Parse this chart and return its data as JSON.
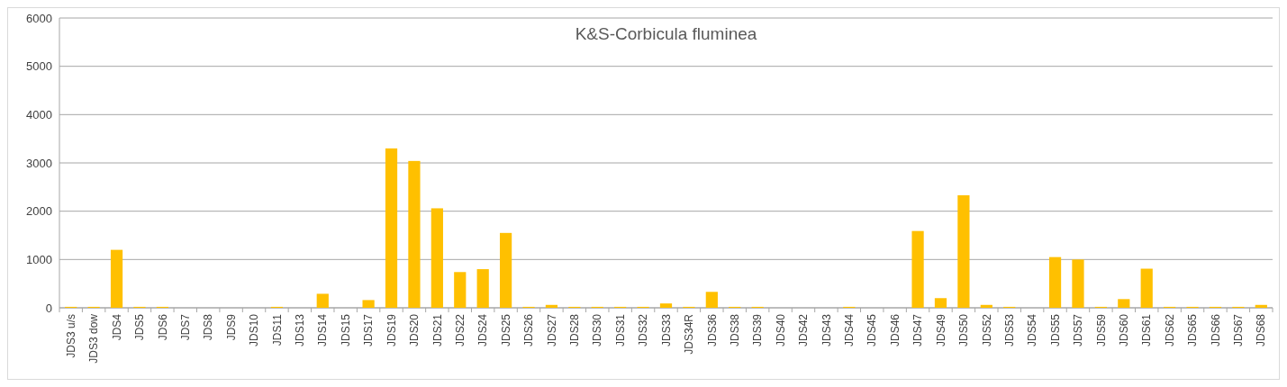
{
  "chart_data": {
    "type": "bar",
    "title": "K&S-Corbicula fluminea",
    "categories": [
      "JDS3 u/s",
      "JDS3 dow",
      "JDS4",
      "JDS5",
      "JDS6",
      "JDS7",
      "JDS8",
      "JDS9",
      "JDS10",
      "JDS11",
      "JDS13",
      "JDS14",
      "JDS15",
      "JDS17",
      "JDS19",
      "JDS20",
      "JDS21",
      "JDS22",
      "JDS24",
      "JDS25",
      "JDS26",
      "JDS27",
      "JDS28",
      "JDS30",
      "JDS31",
      "JDS32",
      "JDS33",
      "JDS34R",
      "JDS36",
      "JDS38",
      "JDS39",
      "JDS40",
      "JDS42",
      "JDS43",
      "JDS44",
      "JDS45",
      "JDS46",
      "JDS47",
      "JDS49",
      "JDS50",
      "JDS52",
      "JDS53",
      "JDS54",
      "JDS55",
      "JDS57",
      "JDS59",
      "JDS60",
      "JDS61",
      "JDS62",
      "JDS65",
      "JDS66",
      "JDS67",
      "JDS68"
    ],
    "values": [
      20,
      20,
      1200,
      20,
      20,
      0,
      0,
      0,
      0,
      20,
      0,
      290,
      0,
      160,
      3300,
      3040,
      2060,
      740,
      800,
      1550,
      20,
      60,
      20,
      20,
      20,
      20,
      90,
      20,
      330,
      20,
      20,
      0,
      0,
      0,
      20,
      0,
      0,
      1590,
      200,
      2330,
      60,
      20,
      0,
      1050,
      1000,
      20,
      180,
      810,
      20,
      20,
      20,
      20,
      60
    ],
    "color": "#ffc000",
    "ylim": [
      0,
      6000
    ],
    "yticks": [
      0,
      1000,
      2000,
      3000,
      4000,
      5000,
      6000
    ],
    "grid": "y"
  }
}
